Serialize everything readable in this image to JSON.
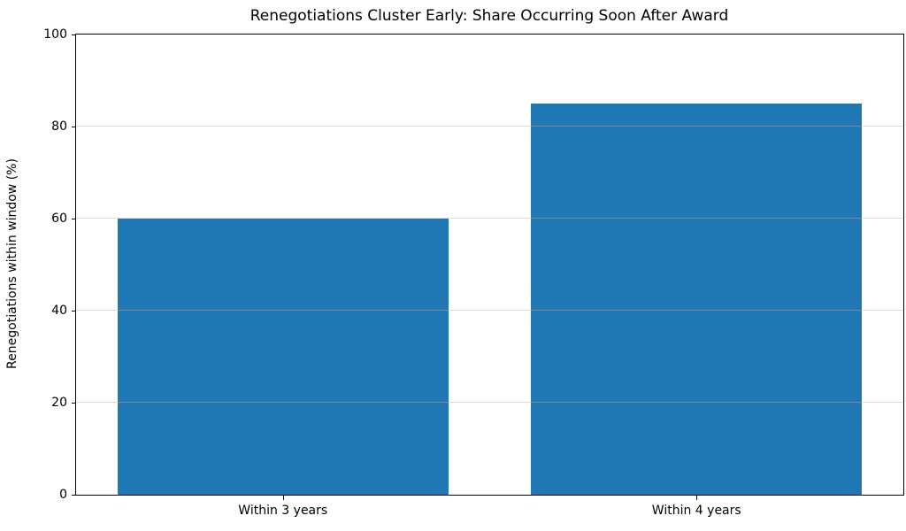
{
  "chart_data": {
    "type": "bar",
    "title": "Renegotiations Cluster Early: Share Occurring Soon After Award",
    "xlabel": "",
    "ylabel": "Renegotiations within window (%)",
    "categories": [
      "Within 3 years",
      "Within 4 years"
    ],
    "values": [
      60,
      85
    ],
    "ylim": [
      0,
      100
    ],
    "yticks": [
      0,
      20,
      40,
      60,
      80,
      100
    ],
    "grid": "horizontal",
    "legend": "none",
    "bar_color": "#1f77b4",
    "grid_color": "rgba(176,176,176,0.45)",
    "axis_color": "#000000",
    "background_color": "#ffffff",
    "bar_width_fraction": 0.4
  }
}
